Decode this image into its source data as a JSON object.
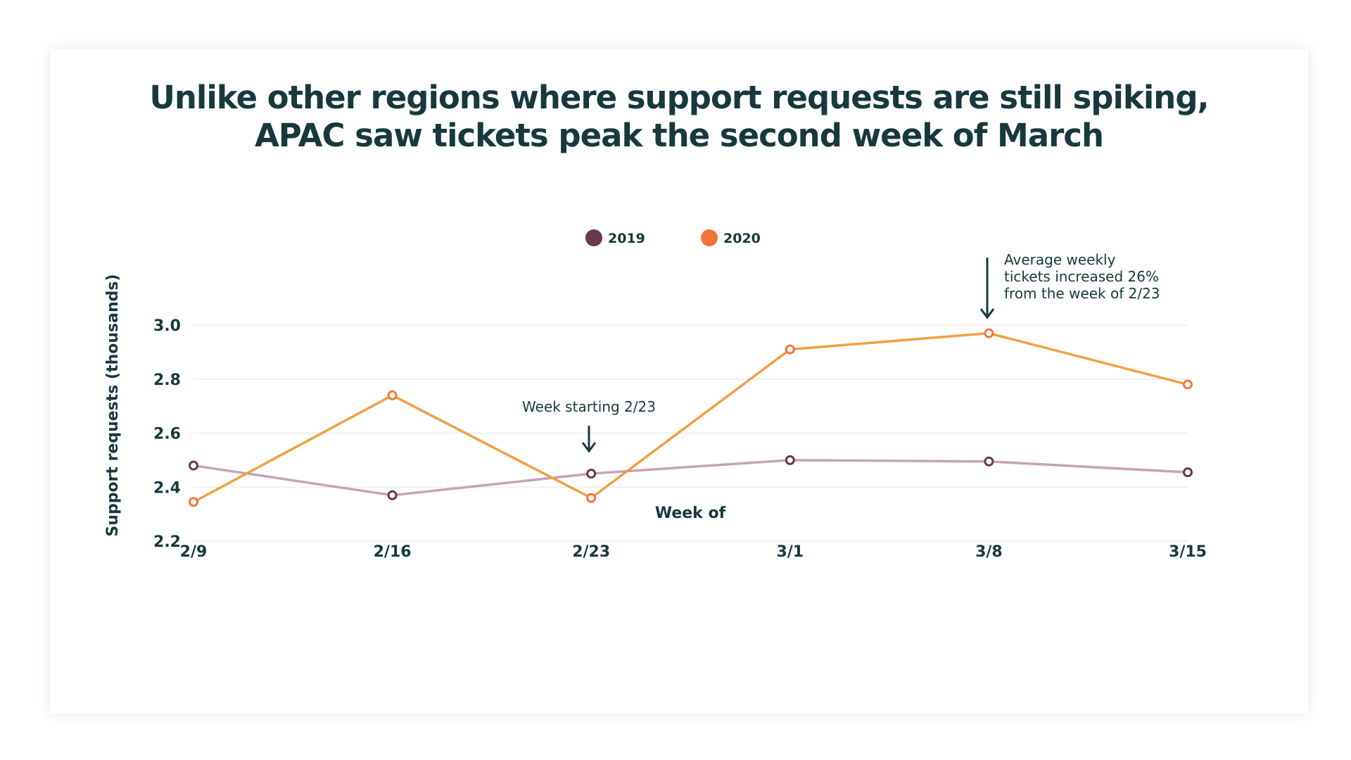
{
  "title_lines": [
    "Unlike other regions where support requests are still spiking,",
    "APAC saw tickets peak the second week of March"
  ],
  "colors": {
    "title": "#17393d",
    "series_2019_line": "#c9a0b8",
    "series_2019_marker": "#6b3650",
    "series_2020_line": "#f0a040",
    "series_2020_marker": "#f2743a",
    "arrow": "#17393d"
  },
  "annotations": {
    "week_start": "Week starting 2/23",
    "peak_lines": [
      "Average weekly",
      "tickets increased 26%",
      "from the week of 2/23"
    ]
  },
  "chart_data": {
    "type": "line",
    "title": "Unlike other regions where support requests are still spiking, APAC saw tickets peak the second week of March",
    "xlabel": "Week of",
    "ylabel": "Support requests (thousands)",
    "categories": [
      "2/9",
      "2/16",
      "2/23",
      "3/1",
      "3/8",
      "3/15"
    ],
    "y_ticks": [
      "2.2",
      "2.4",
      "2.6",
      "2.8",
      "3.0"
    ],
    "ylim": [
      2.2,
      3.0
    ],
    "grid": true,
    "legend_position": "top-center",
    "series": [
      {
        "name": "2019",
        "line_color": "#c9a0b8",
        "marker_color": "#6b3650",
        "values": [
          2.48,
          2.37,
          2.45,
          2.5,
          2.495,
          2.455
        ]
      },
      {
        "name": "2020",
        "line_color": "#f0a040",
        "marker_color": "#f2743a",
        "values": [
          2.345,
          2.74,
          2.36,
          2.91,
          2.97,
          2.78
        ]
      }
    ]
  }
}
